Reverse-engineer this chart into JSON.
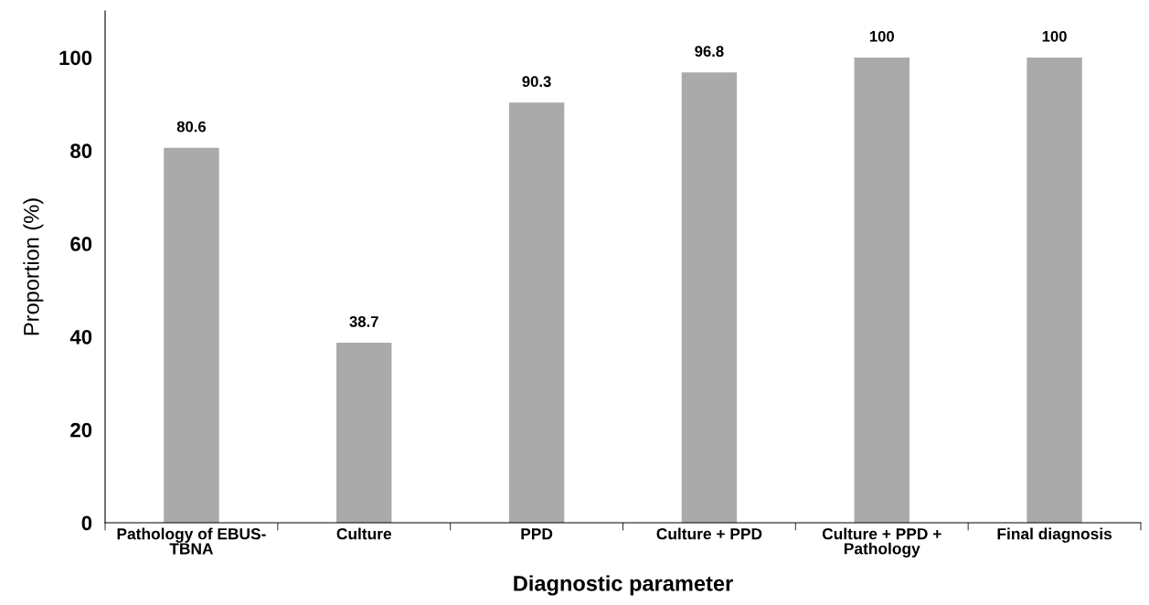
{
  "chart_data": {
    "type": "bar",
    "xlabel": "Diagnostic parameter",
    "ylabel": "Proportion (%)",
    "categories": [
      "Pathology of EBUS-\nTBNA",
      "Culture",
      "PPD",
      "Culture + PPD",
      "Culture + PPD +\nPathology",
      "Final diagnosis"
    ],
    "values": [
      80.6,
      38.7,
      90.3,
      96.8,
      100,
      100
    ],
    "color": "#aaaaaa",
    "ylim": [
      0,
      110
    ],
    "yticks": [
      0,
      20,
      40,
      60,
      80,
      100
    ],
    "grid": false,
    "data_labels": true
  }
}
